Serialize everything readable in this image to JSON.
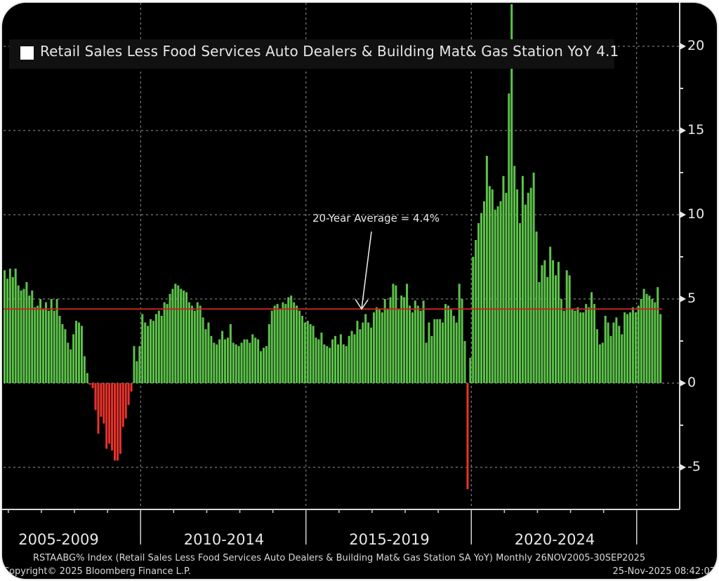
{
  "chart_data": {
    "type": "bar",
    "title": "Retail Sales Less Food Services Auto Dealers & Building Mat& Gas Station YoY 4.1",
    "legend": {
      "label": "Retail Sales Less Food Services Auto Dealers & Building Mat& Gas Station YoY 4.1",
      "placement": "top-left"
    },
    "frequency": "Monthly",
    "start": "2005-11",
    "end": "2025-09",
    "ylim": [
      -7.5,
      22.5
    ],
    "yticks": [
      -5,
      0,
      5,
      10,
      15,
      20
    ],
    "ytick_labels": [
      "-5",
      "0",
      "5",
      "10",
      "15",
      "20"
    ],
    "xcategory_labels": [
      "2005-2009",
      "2010-2014",
      "2015-2019",
      "2020-2024"
    ],
    "reference_line": {
      "value": 4.4,
      "label": "20-Year Average = 4.4%"
    },
    "positive_color": "#5cc24a",
    "negative_color": "#e8332a",
    "reference_color": "#c0281e",
    "grid": true,
    "values": [
      6.7,
      6.2,
      6.8,
      6.3,
      6.8,
      5.8,
      5.5,
      5.6,
      6.0,
      5.2,
      5.5,
      4.5,
      4.6,
      5.0,
      4.4,
      4.8,
      4.3,
      5.0,
      4.3,
      5.0,
      4.0,
      3.5,
      3.2,
      2.4,
      2.0,
      2.9,
      3.7,
      3.6,
      3.4,
      1.6,
      0.6,
      -0.1,
      -0.3,
      -1.6,
      -3.0,
      -2.0,
      -2.4,
      -3.9,
      -3.6,
      -4.0,
      -4.6,
      -4.6,
      -4.2,
      -2.6,
      -2.1,
      -1.3,
      -0.5,
      2.2,
      1.3,
      2.2,
      4.1,
      3.6,
      3.4,
      3.8,
      3.7,
      4.1,
      4.3,
      4.0,
      4.8,
      4.7,
      5.3,
      5.6,
      5.9,
      5.8,
      5.6,
      5.5,
      5.4,
      4.8,
      4.6,
      4.3,
      4.8,
      4.6,
      3.9,
      3.2,
      3.6,
      2.8,
      2.4,
      2.3,
      2.6,
      3.1,
      2.6,
      2.7,
      3.5,
      2.4,
      2.3,
      2.2,
      2.4,
      2.6,
      2.6,
      2.4,
      2.9,
      2.7,
      2.6,
      1.9,
      2.1,
      2.2,
      3.5,
      4.3,
      4.6,
      4.7,
      4.4,
      4.8,
      4.7,
      5.1,
      5.2,
      4.8,
      4.6,
      4.3,
      4.0,
      3.6,
      3.7,
      3.5,
      3.4,
      2.7,
      2.6,
      3.0,
      2.3,
      2.2,
      2.1,
      2.6,
      2.8,
      2.3,
      2.9,
      2.3,
      2.2,
      2.8,
      3.1,
      2.9,
      3.7,
      3.2,
      3.6,
      4.1,
      3.6,
      3.3,
      4.2,
      4.5,
      4.4,
      4.2,
      5.0,
      4.4,
      5.1,
      5.9,
      5.8,
      4.4,
      5.2,
      5.1,
      5.9,
      4.6,
      4.2,
      4.9,
      4.6,
      4.3,
      4.9,
      2.4,
      3.6,
      2.8,
      3.8,
      3.8,
      3.8,
      3.6,
      4.7,
      4.6,
      4.4,
      4.0,
      3.6,
      5.9,
      5.0,
      2.5,
      -6.3,
      1.5,
      7.5,
      8.5,
      9.5,
      10.1,
      10.8,
      13.5,
      11.7,
      11.5,
      10.3,
      10.5,
      10.8,
      12.3,
      11.3,
      17.2,
      22.5,
      12.9,
      11.5,
      9.5,
      12.3,
      10.6,
      11.3,
      11.6,
      12.5,
      9.0,
      6.0,
      7.0,
      7.3,
      6.3,
      8.1,
      7.3,
      6.4,
      7.2,
      5.0,
      4.3,
      6.7,
      6.4,
      4.4,
      4.3,
      4.5,
      4.2,
      4.2,
      4.7,
      4.5,
      5.4,
      4.7,
      3.2,
      2.3,
      2.4,
      4.0,
      3.6,
      2.8,
      3.6,
      3.9,
      3.4,
      2.9,
      4.2,
      4.1,
      4.2,
      4.5,
      4.2,
      4.6,
      5.0,
      5.6,
      5.3,
      5.2,
      5.0,
      4.8,
      5.7,
      4.1
    ]
  },
  "legend_box": {
    "label": "Retail Sales Less Food Services Auto Dealers & Building Mat& Gas Station YoY 4.1"
  },
  "annotation": {
    "label": "20-Year Average = 4.4%"
  },
  "footer": {
    "source_line": "RSTAABG% Index (Retail Sales Less Food Services Auto Dealers & Building Mat& Gas Station SA YoY) Monthly 26NOV2005-30SEP2025",
    "copyright": "Copyright© 2025 Bloomberg Finance L.P.",
    "timestamp": "25-Nov-2025 08:42:07"
  }
}
